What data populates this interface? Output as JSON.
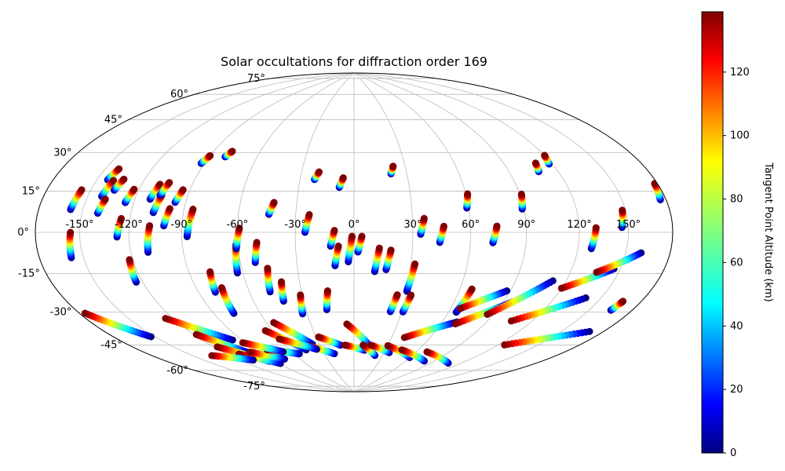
{
  "chart_data": {
    "type": "scatter",
    "projection": "Hammer",
    "title": "Solar occultations for diffraction order 169",
    "longitude_ticks": [
      "-150°",
      "-120°",
      "-90°",
      "-60°",
      "-30°",
      "0°",
      "30°",
      "60°",
      "90°",
      "120°",
      "150°"
    ],
    "longitude_tick_values": [
      -150,
      -120,
      -90,
      -60,
      -30,
      0,
      30,
      60,
      90,
      120,
      150
    ],
    "latitude_ticks": [
      "-75°",
      "-60°",
      "-45°",
      "-30°",
      "-15°",
      "0°",
      "15°",
      "30°",
      "45°",
      "60°",
      "75°"
    ],
    "latitude_tick_values": [
      -75,
      -60,
      -45,
      -30,
      -15,
      0,
      15,
      30,
      45,
      60,
      75
    ],
    "grid": true,
    "colorbar": {
      "label": "Tangent Point Altitude (km)",
      "ticks": [
        "0",
        "20",
        "40",
        "60",
        "80",
        "100",
        "120"
      ],
      "tick_values": [
        0,
        20,
        40,
        60,
        80,
        100,
        120
      ],
      "range": [
        0,
        139
      ],
      "colormap": "jet"
    },
    "occultations": [
      {
        "lon": -158,
        "lat": 9,
        "dlat": 8
      },
      {
        "lon": -158,
        "lat": -10,
        "dlat": 10
      },
      {
        "lon": -143,
        "lat": 22,
        "dlat": 5
      },
      {
        "lon": -141,
        "lat": 15,
        "dlat": 7
      },
      {
        "lon": -140,
        "lat": 8,
        "dlat": 6
      },
      {
        "lon": -135,
        "lat": 18,
        "dlat": 5
      },
      {
        "lon": -127,
        "lat": -2,
        "dlat": 8
      },
      {
        "lon": -125,
        "lat": 13,
        "dlat": 6
      },
      {
        "lon": -124,
        "lat": -22,
        "dlat": 10
      },
      {
        "lon": -111,
        "lat": 15,
        "dlat": 7
      },
      {
        "lon": -110,
        "lat": -9,
        "dlat": 12
      },
      {
        "lon": -107,
        "lat": 9,
        "dlat": 8
      },
      {
        "lon": -106,
        "lat": 17,
        "dlat": 6
      },
      {
        "lon": -100,
        "lat": 3,
        "dlat": 8
      },
      {
        "lon": -96,
        "lat": 14,
        "dlat": 6
      },
      {
        "lon": -92,
        "lat": 33,
        "dlat": 4
      },
      {
        "lon": -87,
        "lat": -2,
        "dlat": 13
      },
      {
        "lon": -80,
        "lat": 37,
        "dlat": 3
      },
      {
        "lon": -80,
        "lat": -29,
        "dlat": 10
      },
      {
        "lon": -77,
        "lat": -40,
        "dlat": 13
      },
      {
        "lon": -63,
        "lat": -20,
        "dlat": 14
      },
      {
        "lon": -61,
        "lat": -8,
        "dlat": 10
      },
      {
        "lon": -52,
        "lat": -15,
        "dlat": 10
      },
      {
        "lon": -48,
        "lat": -30,
        "dlat": 12
      },
      {
        "lon": -44,
        "lat": 9,
        "dlat": 6
      },
      {
        "lon": -42,
        "lat": -35,
        "dlat": 10
      },
      {
        "lon": -33,
        "lat": -42,
        "dlat": 10
      },
      {
        "lon": -25,
        "lat": 0,
        "dlat": 9
      },
      {
        "lon": -22,
        "lat": 27,
        "dlat": 4
      },
      {
        "lon": -17,
        "lat": -40,
        "dlat": 10
      },
      {
        "lon": -12,
        "lat": -7,
        "dlat": 8
      },
      {
        "lon": -10,
        "lat": -17,
        "dlat": 10
      },
      {
        "lon": -8,
        "lat": 23,
        "dlat": 5
      },
      {
        "lon": -3,
        "lat": -15,
        "dlat": 13
      },
      {
        "lon": 2,
        "lat": -10,
        "dlat": 8
      },
      {
        "lon": 11,
        "lat": -20,
        "dlat": 12
      },
      {
        "lon": 17,
        "lat": -19,
        "dlat": 10
      },
      {
        "lon": 21,
        "lat": 30,
        "dlat": 4
      },
      {
        "lon": 23,
        "lat": -41,
        "dlat": 9
      },
      {
        "lon": 30,
        "lat": -30,
        "dlat": 14
      },
      {
        "lon": 31,
        "lat": -41,
        "dlat": 9
      },
      {
        "lon": 34,
        "lat": -1,
        "dlat": 8
      },
      {
        "lon": 44,
        "lat": -5,
        "dlat": 8
      },
      {
        "lon": 59,
        "lat": 12,
        "dlat": 7
      },
      {
        "lon": 65,
        "lat": -40,
        "dlat": 12
      },
      {
        "lon": 72,
        "lat": -5,
        "dlat": 8
      },
      {
        "lon": 89,
        "lat": 11,
        "dlat": 7
      },
      {
        "lon": 108,
        "lat": 28,
        "dlat": 4
      },
      {
        "lon": 118,
        "lat": 31,
        "dlat": 4
      },
      {
        "lon": 128,
        "lat": -7,
        "dlat": 9
      },
      {
        "lon": 146,
        "lat": 2,
        "dlat": 7
      },
      {
        "lon": 176,
        "lat": 12,
        "dlat": 6
      },
      {
        "lon": 165,
        "lat": -31,
        "dlat": 4
      }
    ],
    "diagonal_tracks": [
      {
        "lon1": -176,
        "lat1": -31,
        "lon2": -153,
        "lat2": -45
      },
      {
        "lon1": -125,
        "lat1": -39,
        "lon2": -97,
        "lat2": -53
      },
      {
        "lon1": -118,
        "lat1": -48,
        "lon2": -100,
        "lat2": -60
      },
      {
        "lon1": -117,
        "lat1": -55,
        "lon2": -95,
        "lat2": -66
      },
      {
        "lon1": -110,
        "lat1": -60,
        "lon2": -88,
        "lat2": -68
      },
      {
        "lon1": -98,
        "lat1": -60,
        "lon2": -76,
        "lat2": -66
      },
      {
        "lon1": -80,
        "lat1": -60,
        "lon2": -55,
        "lat2": -64
      },
      {
        "lon1": -65,
        "lat1": -50,
        "lon2": -45,
        "lat2": -62
      },
      {
        "lon1": -55,
        "lat1": -46,
        "lon2": -36,
        "lat2": -59
      },
      {
        "lon1": -40,
        "lat1": -60,
        "lon2": -20,
        "lat2": -65
      },
      {
        "lon1": -28,
        "lat1": -55,
        "lon2": -12,
        "lat2": -60
      },
      {
        "lon1": -8,
        "lat1": -60,
        "lon2": 10,
        "lat2": -63
      },
      {
        "lon1": -5,
        "lat1": -48,
        "lon2": 13,
        "lat2": -60
      },
      {
        "lon1": 8,
        "lat1": -60,
        "lon2": 22,
        "lat2": -66
      },
      {
        "lon1": 15,
        "lat1": -60,
        "lon2": 35,
        "lat2": -64
      },
      {
        "lon1": 30,
        "lat1": -60,
        "lon2": 60,
        "lat2": -66
      },
      {
        "lon1": 45,
        "lat1": -62,
        "lon2": 80,
        "lat2": -67
      },
      {
        "lon1": 70,
        "lat1": -62,
        "lon2": 108,
        "lat2": -66
      },
      {
        "lon1": 40,
        "lat1": -55,
        "lon2": 70,
        "lat2": -45
      },
      {
        "lon1": 70,
        "lat1": -46,
        "lon2": 96,
        "lat2": -33
      },
      {
        "lon1": 66,
        "lat1": -38,
        "lon2": 88,
        "lat2": -28
      },
      {
        "lon1": 86,
        "lat1": -40,
        "lon2": 112,
        "lat2": -22
      },
      {
        "lon1": 106,
        "lat1": -42,
        "lon2": 140,
        "lat2": -28
      },
      {
        "lon1": 125,
        "lat1": -53,
        "lon2": 170,
        "lat2": -40
      },
      {
        "lon1": 120,
        "lat1": -25,
        "lon2": 146,
        "lat2": -15
      },
      {
        "lon1": 136,
        "lat1": -17,
        "lon2": 160,
        "lat2": -8
      },
      {
        "lon1": -60,
        "lat1": -55,
        "lon2": -35,
        "lat2": -62
      },
      {
        "lon1": -135,
        "lat1": -58,
        "lon2": -108,
        "lat2": -64
      },
      {
        "lon1": -92,
        "lat1": -55,
        "lon2": -68,
        "lat2": -62
      }
    ]
  }
}
